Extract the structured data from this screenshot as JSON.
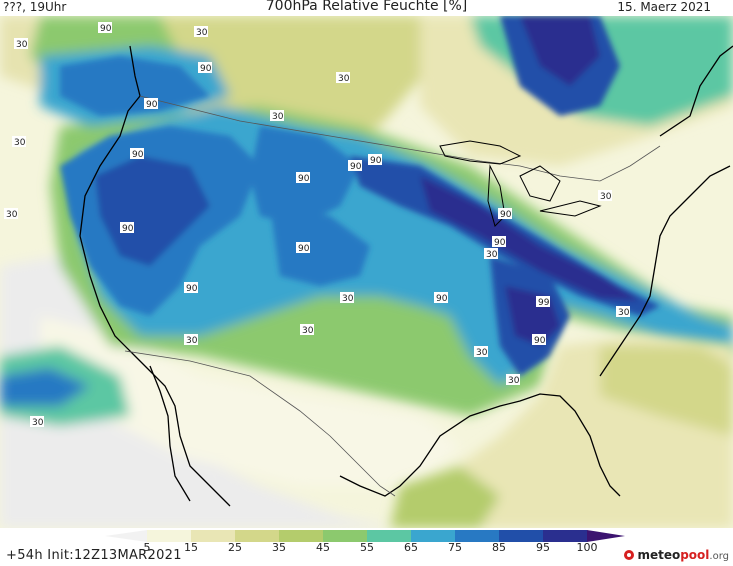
{
  "header": {
    "left": "???, 19Uhr",
    "title": "700hPa Relative Feuchte [%]",
    "date": "15. Maerz 2021"
  },
  "footer": {
    "run_info": "+54h Init:12Z13MAR2021",
    "logo_main": "meteo",
    "logo_accent": "pool",
    "logo_suffix": ".org"
  },
  "colorbar": {
    "ticks": [
      "5",
      "15",
      "25",
      "35",
      "45",
      "55",
      "65",
      "75",
      "85",
      "95",
      "100"
    ],
    "colors": [
      "#f2f2f2",
      "#f5f5dc",
      "#e9e6b5",
      "#d3d78a",
      "#b4cc6c",
      "#8cc96e",
      "#5cc7a3",
      "#3aa6cf",
      "#2879c3",
      "#214fa9",
      "#2a2f8f",
      "#3c1470"
    ]
  },
  "contour_labels": [
    "90",
    "30",
    "90",
    "90",
    "30",
    "30",
    "90",
    "90",
    "30",
    "90",
    "90",
    "30",
    "90",
    "90",
    "90",
    "90",
    "30",
    "90",
    "30",
    "90",
    "99",
    "30",
    "30",
    "90",
    "30",
    "30",
    "30",
    "30",
    "30",
    "30"
  ]
}
